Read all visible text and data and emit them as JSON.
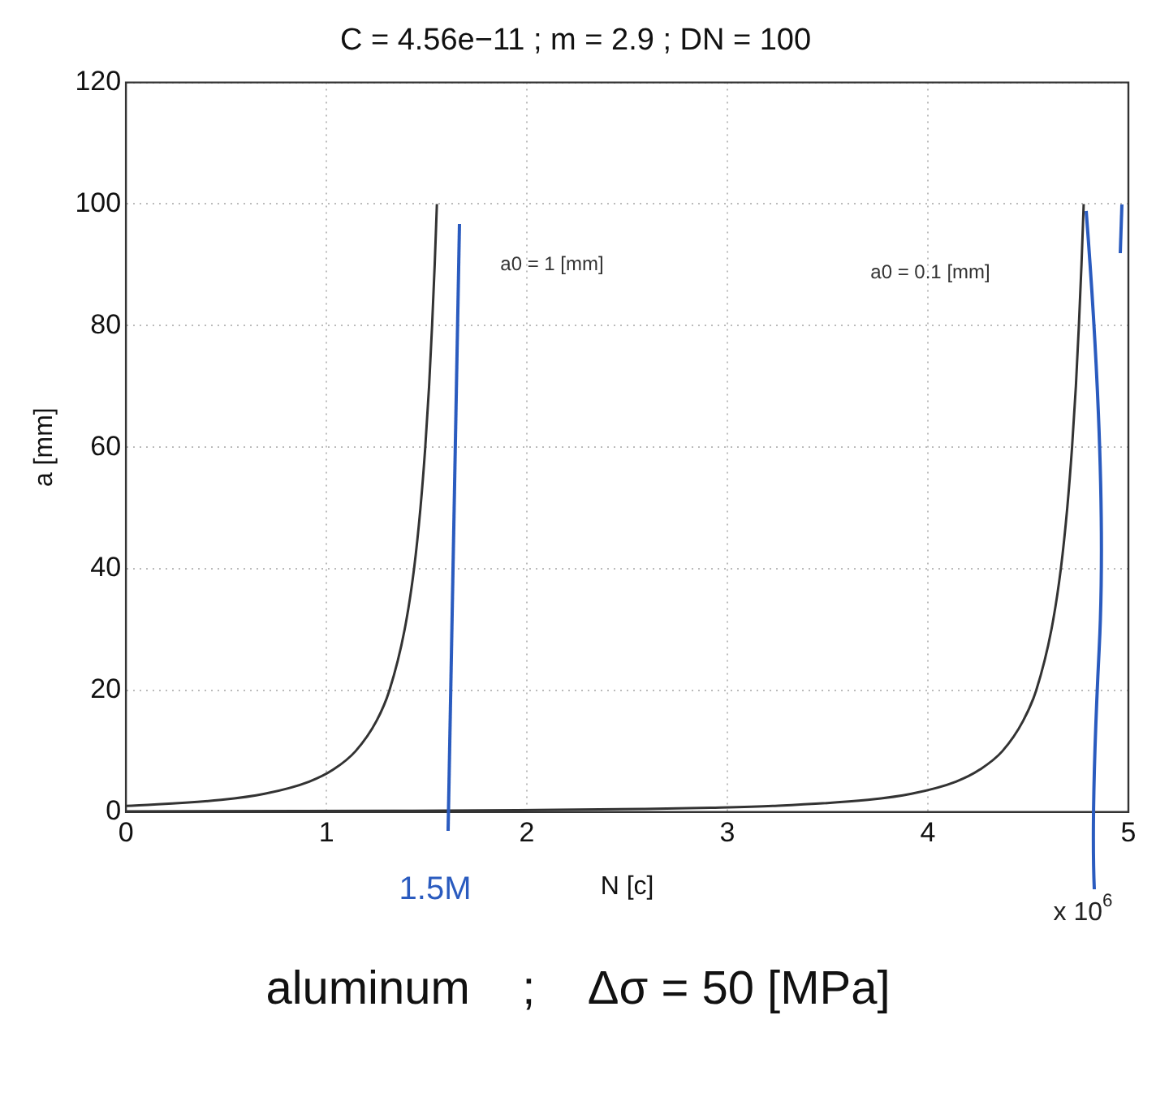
{
  "chart_data": {
    "type": "line",
    "title": "C = 4.56e−11 ; m = 2.9 ; DN = 100",
    "xlabel": "N [c]",
    "ylabel": "a [mm]",
    "xlim": [
      0,
      5
    ],
    "xticks": [
      0,
      1,
      2,
      3,
      4,
      5
    ],
    "ylim": [
      0,
      120
    ],
    "yticks": [
      0,
      20,
      40,
      60,
      80,
      100,
      120
    ],
    "grid": true,
    "legend": false,
    "marker": "none",
    "line_style": "solid",
    "series": [
      {
        "color": "#333333",
        "x": [
          0,
          0.475,
          0.692,
          0.914,
          1.035,
          1.145,
          1.25,
          1.314,
          1.39,
          1.437,
          1.469,
          1.493,
          1.512,
          1.527,
          1.54,
          1.551
        ],
        "values": [
          1,
          2,
          3,
          5,
          7,
          10,
          15,
          20,
          30,
          40,
          50,
          60,
          70,
          80,
          90,
          100
        ]
      },
      {
        "color": "#333333",
        "x": [
          0,
          1.339,
          1.951,
          2.577,
          2.918,
          3.226,
          3.701,
          3.918,
          4.14,
          4.26,
          4.371,
          4.475,
          4.54,
          4.616,
          4.663,
          4.695,
          4.719,
          4.738,
          4.753,
          4.766,
          4.777
        ],
        "values": [
          0.1,
          0.2,
          0.3,
          0.5,
          0.7,
          1,
          2,
          3,
          5,
          7,
          10,
          15,
          20,
          30,
          40,
          50,
          60,
          70,
          80,
          90,
          100
        ]
      }
    ],
    "annotations": [
      "a0 = 1 [mm]",
      "a0 = 0.1 [mm]",
      "x 10$^{6}$",
      "1.5M",
      "aluminum    ;    Δσ = 50 [MPa]"
    ]
  }
}
